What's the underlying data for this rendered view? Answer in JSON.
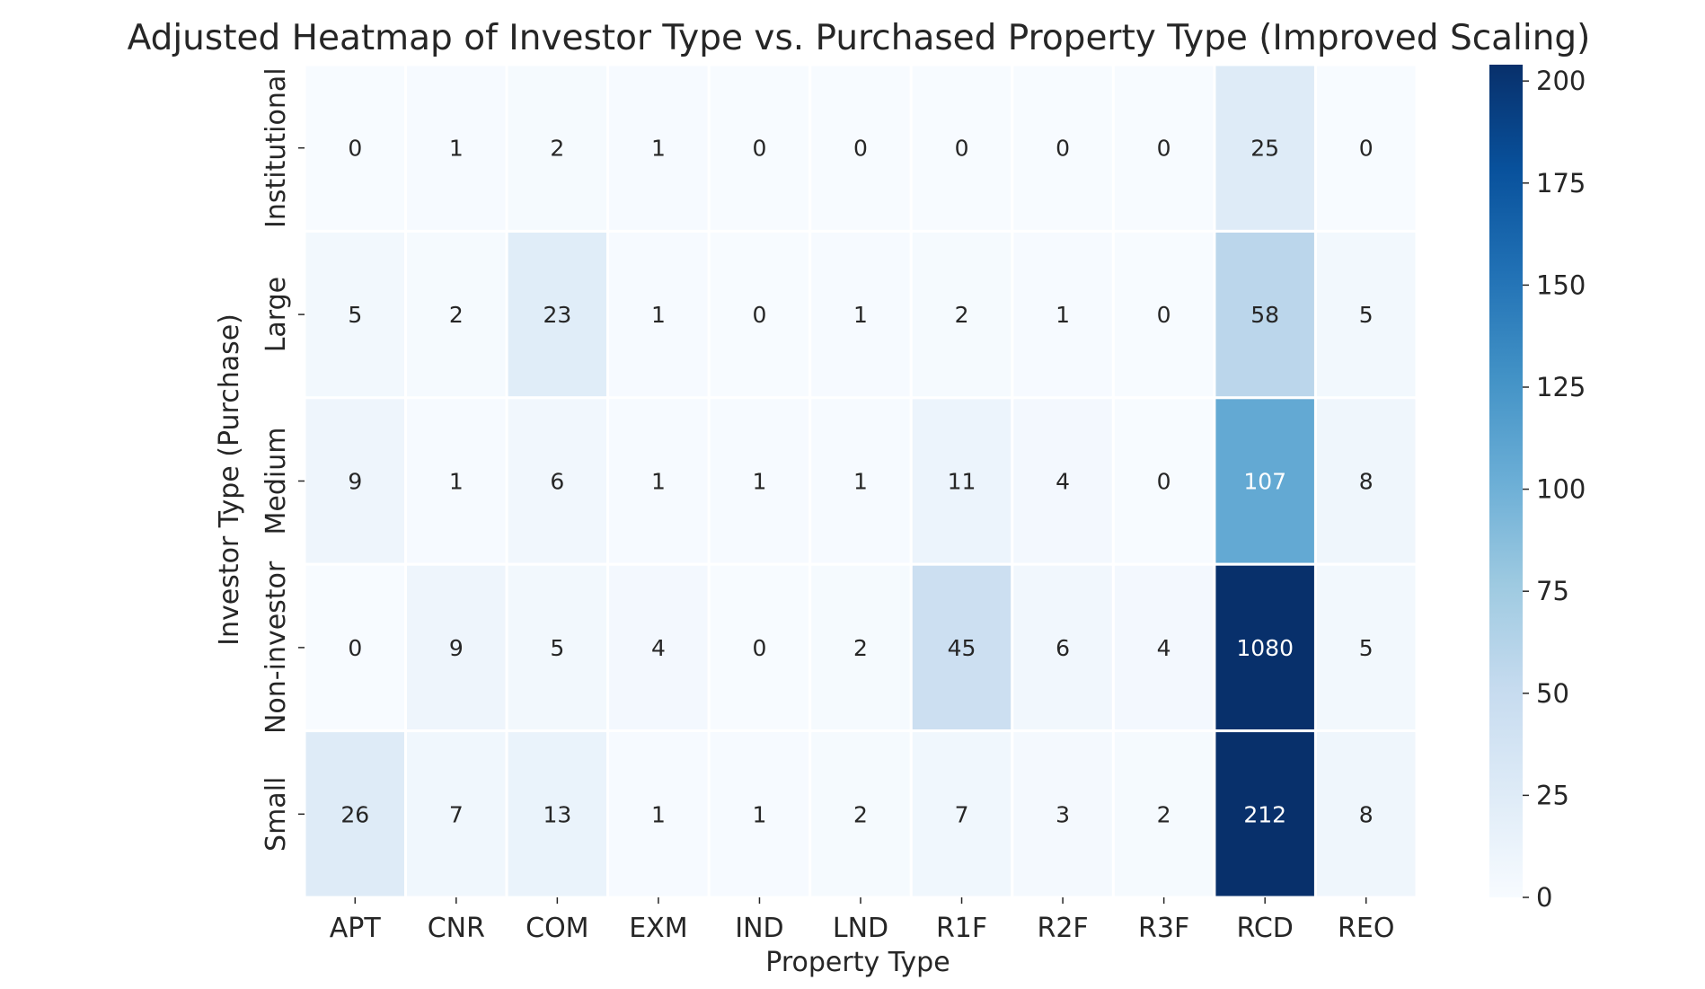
{
  "chart_data": {
    "type": "heatmap",
    "title": "Adjusted Heatmap of Investor Type vs. Purchased Property Type (Improved Scaling)",
    "xlabel": "Property Type",
    "ylabel": "Investor Type (Purchase)",
    "x_categories": [
      "APT",
      "CNR",
      "COM",
      "EXM",
      "IND",
      "LND",
      "R1F",
      "R2F",
      "R3F",
      "RCD",
      "REO"
    ],
    "y_categories": [
      "Institutional",
      "Large",
      "Medium",
      "Non-investor",
      "Small"
    ],
    "values": [
      [
        0,
        1,
        2,
        1,
        0,
        0,
        0,
        0,
        0,
        25,
        0
      ],
      [
        5,
        2,
        23,
        1,
        0,
        1,
        2,
        1,
        0,
        58,
        5
      ],
      [
        9,
        1,
        6,
        1,
        1,
        1,
        11,
        4,
        0,
        107,
        8
      ],
      [
        0,
        9,
        5,
        4,
        0,
        2,
        45,
        6,
        4,
        1080,
        5
      ],
      [
        26,
        7,
        13,
        1,
        1,
        2,
        7,
        3,
        2,
        212,
        8
      ]
    ],
    "colorbar": {
      "colormap": "Blues",
      "range": [
        0,
        204
      ],
      "ticks": [
        0,
        25,
        50,
        75,
        100,
        125,
        150,
        175,
        200
      ]
    },
    "grid": false,
    "legend": "colorbar-right"
  }
}
